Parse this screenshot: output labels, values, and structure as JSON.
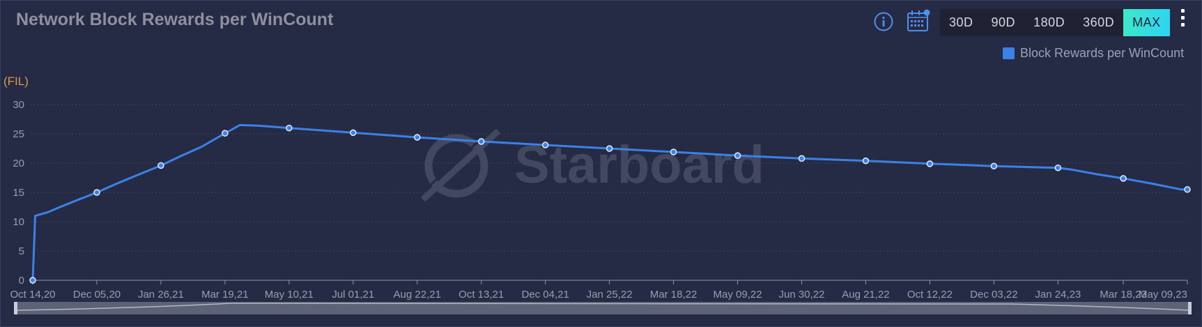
{
  "header": {
    "title": "Network Block Rewards per WinCount",
    "ranges": [
      "30D",
      "90D",
      "180D",
      "360D",
      "MAX"
    ],
    "active_range": "MAX"
  },
  "icons": {
    "info": "info-icon",
    "calendar": "calendar-icon",
    "menu": "kebab-menu-icon"
  },
  "watermark": "Starboard",
  "colors": {
    "line": "#3b82e8",
    "background": "#262b45",
    "accent": "#3de8c8",
    "unit": "#d99a48"
  },
  "chart_data": {
    "type": "line",
    "title": "Network Block Rewards per WinCount",
    "ylabel": "(FIL)",
    "xlabel": "",
    "ylim": [
      0,
      30
    ],
    "yticks": [
      0,
      5,
      10,
      15,
      20,
      25,
      30
    ],
    "grid": true,
    "legend_position": "top-right",
    "x_tick_labels": [
      "Oct 14,20",
      "Dec 05,20",
      "Jan 26,21",
      "Mar 19,21",
      "May 10,21",
      "Jul 01,21",
      "Aug 22,21",
      "Oct 13,21",
      "Dec 04,21",
      "Jan 25,22",
      "Mar 18,22",
      "May 09,22",
      "Jun 30,22",
      "Aug 21,22",
      "Oct 12,22",
      "Dec 03,22",
      "Jan 24,23",
      "Mar 18,23",
      "May 09,23"
    ],
    "series": [
      {
        "name": "Block Rewards per WinCount",
        "color": "#3b82e8",
        "x": [
          "2020-10-14",
          "2020-10-16",
          "2020-10-26",
          "2020-11-05",
          "2020-11-18",
          "2020-12-05",
          "2020-12-20",
          "2021-01-05",
          "2021-01-26",
          "2021-02-10",
          "2021-02-28",
          "2021-03-19",
          "2021-03-26",
          "2021-03-31",
          "2021-04-15",
          "2021-05-10",
          "2021-07-01",
          "2021-08-22",
          "2021-10-13",
          "2021-12-04",
          "2022-01-25",
          "2022-03-18",
          "2022-05-09",
          "2022-06-30",
          "2022-08-21",
          "2022-10-12",
          "2022-12-03",
          "2023-01-24",
          "2023-02-04",
          "2023-02-25",
          "2023-03-18",
          "2023-04-08",
          "2023-04-27",
          "2023-05-04",
          "2023-05-09"
        ],
        "y": [
          0,
          11,
          11.6,
          12.5,
          13.6,
          15.0,
          16.4,
          17.8,
          19.6,
          21.1,
          22.8,
          25.1,
          25.9,
          26.5,
          26.4,
          26.0,
          25.2,
          24.4,
          23.7,
          23.1,
          22.5,
          21.9,
          21.3,
          20.8,
          20.4,
          19.9,
          19.5,
          19.2,
          18.9,
          18.1,
          17.4,
          16.6,
          15.8,
          15.5,
          15.5
        ],
        "markers_at": [
          "2020-10-14",
          "2020-12-05",
          "2021-01-26",
          "2021-03-19",
          "2021-05-10",
          "2021-07-01",
          "2021-08-22",
          "2021-10-13",
          "2021-12-04",
          "2022-01-25",
          "2022-03-18",
          "2022-05-09",
          "2022-06-30",
          "2022-08-21",
          "2022-10-12",
          "2022-12-03",
          "2023-01-24",
          "2023-03-18",
          "2023-05-09"
        ]
      }
    ]
  }
}
